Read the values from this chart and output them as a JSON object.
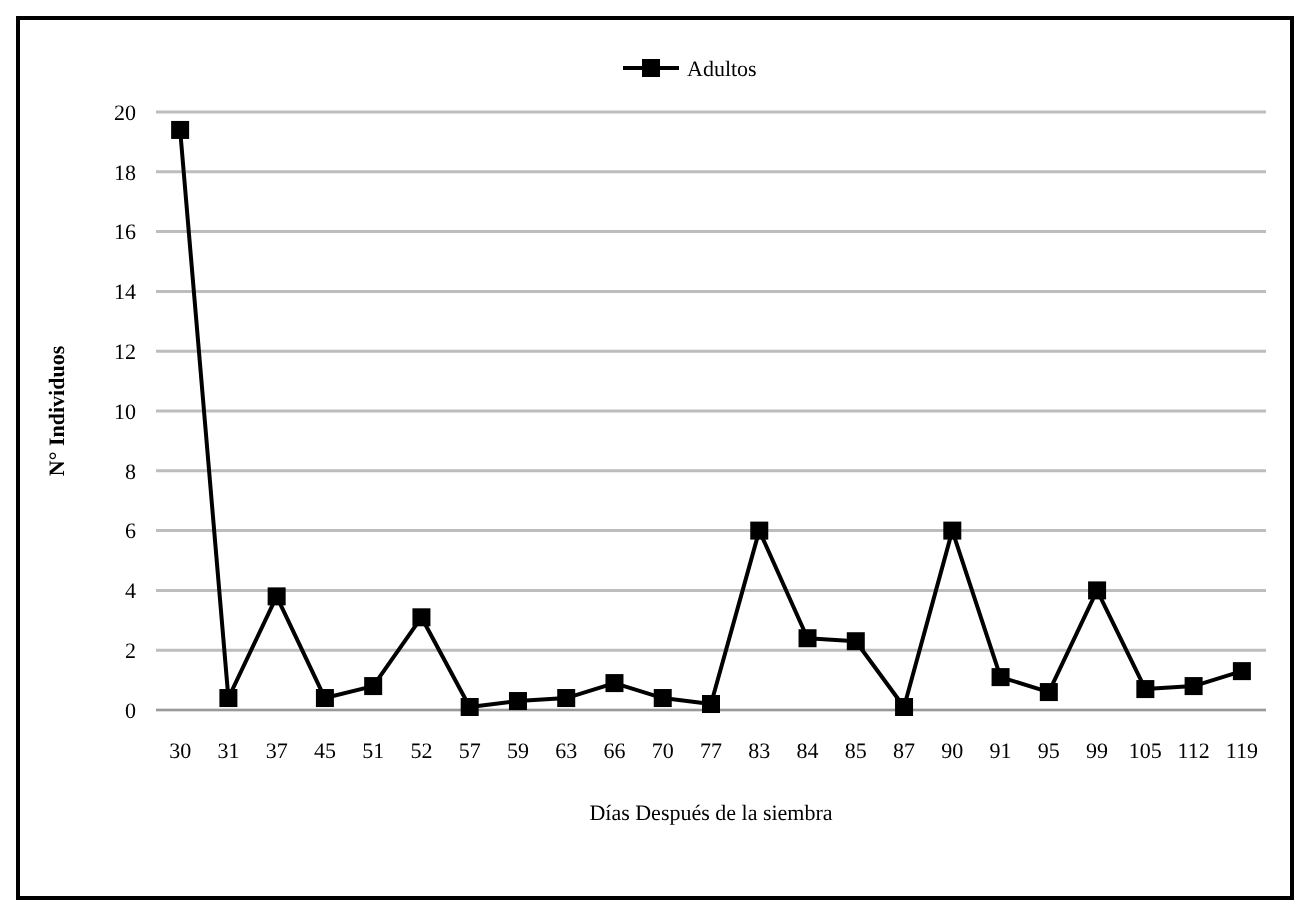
{
  "chart_data": {
    "type": "line",
    "xlabel": "Días Después de la siembra",
    "ylabel": "N° Individuos",
    "categories": [
      "30",
      "31",
      "37",
      "45",
      "51",
      "52",
      "57",
      "59",
      "63",
      "66",
      "70",
      "77",
      "83",
      "84",
      "85",
      "87",
      "90",
      "91",
      "95",
      "99",
      "105",
      "112",
      "119"
    ],
    "series": [
      {
        "name": "Adultos",
        "color": "#000000",
        "values": [
          19.4,
          0.4,
          3.8,
          0.4,
          0.8,
          3.1,
          0.1,
          0.3,
          0.4,
          0.9,
          0.4,
          0.2,
          6.0,
          2.4,
          2.3,
          0.1,
          6.0,
          1.1,
          0.6,
          4.0,
          0.7,
          0.8,
          1.3
        ]
      }
    ],
    "ylim": [
      0,
      20
    ],
    "yticks": [
      0,
      2,
      4,
      6,
      8,
      10,
      12,
      14,
      16,
      18,
      20
    ],
    "grid": "y",
    "legend": "top",
    "marker": "square",
    "line_style": "solid"
  }
}
